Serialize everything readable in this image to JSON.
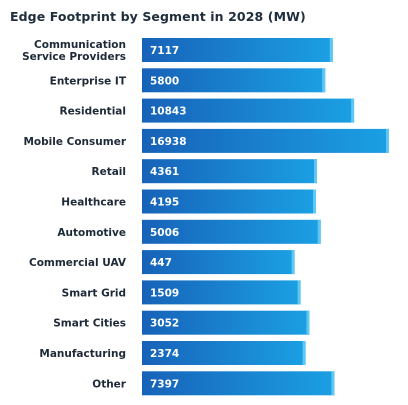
{
  "chart_data": {
    "type": "bar",
    "orientation": "horizontal",
    "title": "Edge Footprint by Segment in 2028 (MW)",
    "categories": [
      [
        "Communication",
        "Service Providers"
      ],
      [
        "Enterprise IT"
      ],
      [
        "Residential"
      ],
      [
        "Mobile Consumer"
      ],
      [
        "Retail"
      ],
      [
        "Healthcare"
      ],
      [
        "Automotive"
      ],
      [
        "Commercial UAV"
      ],
      [
        "Smart Grid"
      ],
      [
        "Smart Cities"
      ],
      [
        "Manufacturing"
      ],
      [
        "Other"
      ]
    ],
    "values": [
      7117,
      5800,
      10843,
      16938,
      4361,
      4195,
      5006,
      447,
      1509,
      3052,
      2374,
      7397
    ],
    "value_labels": [
      "7117",
      "5800",
      "10843",
      "16938",
      "4361",
      "4195",
      "5006",
      "447",
      "1509",
      "3052",
      "2374",
      "7397"
    ],
    "xlabel": "",
    "ylabel": "",
    "grid": false,
    "legend": "none",
    "colors": {
      "bar_left": "#1762b8",
      "bar_right": "#1ba0e3",
      "bar_edge": "#5fc7f3",
      "label": "#1e2a38",
      "value_text": "#ffffff"
    }
  }
}
